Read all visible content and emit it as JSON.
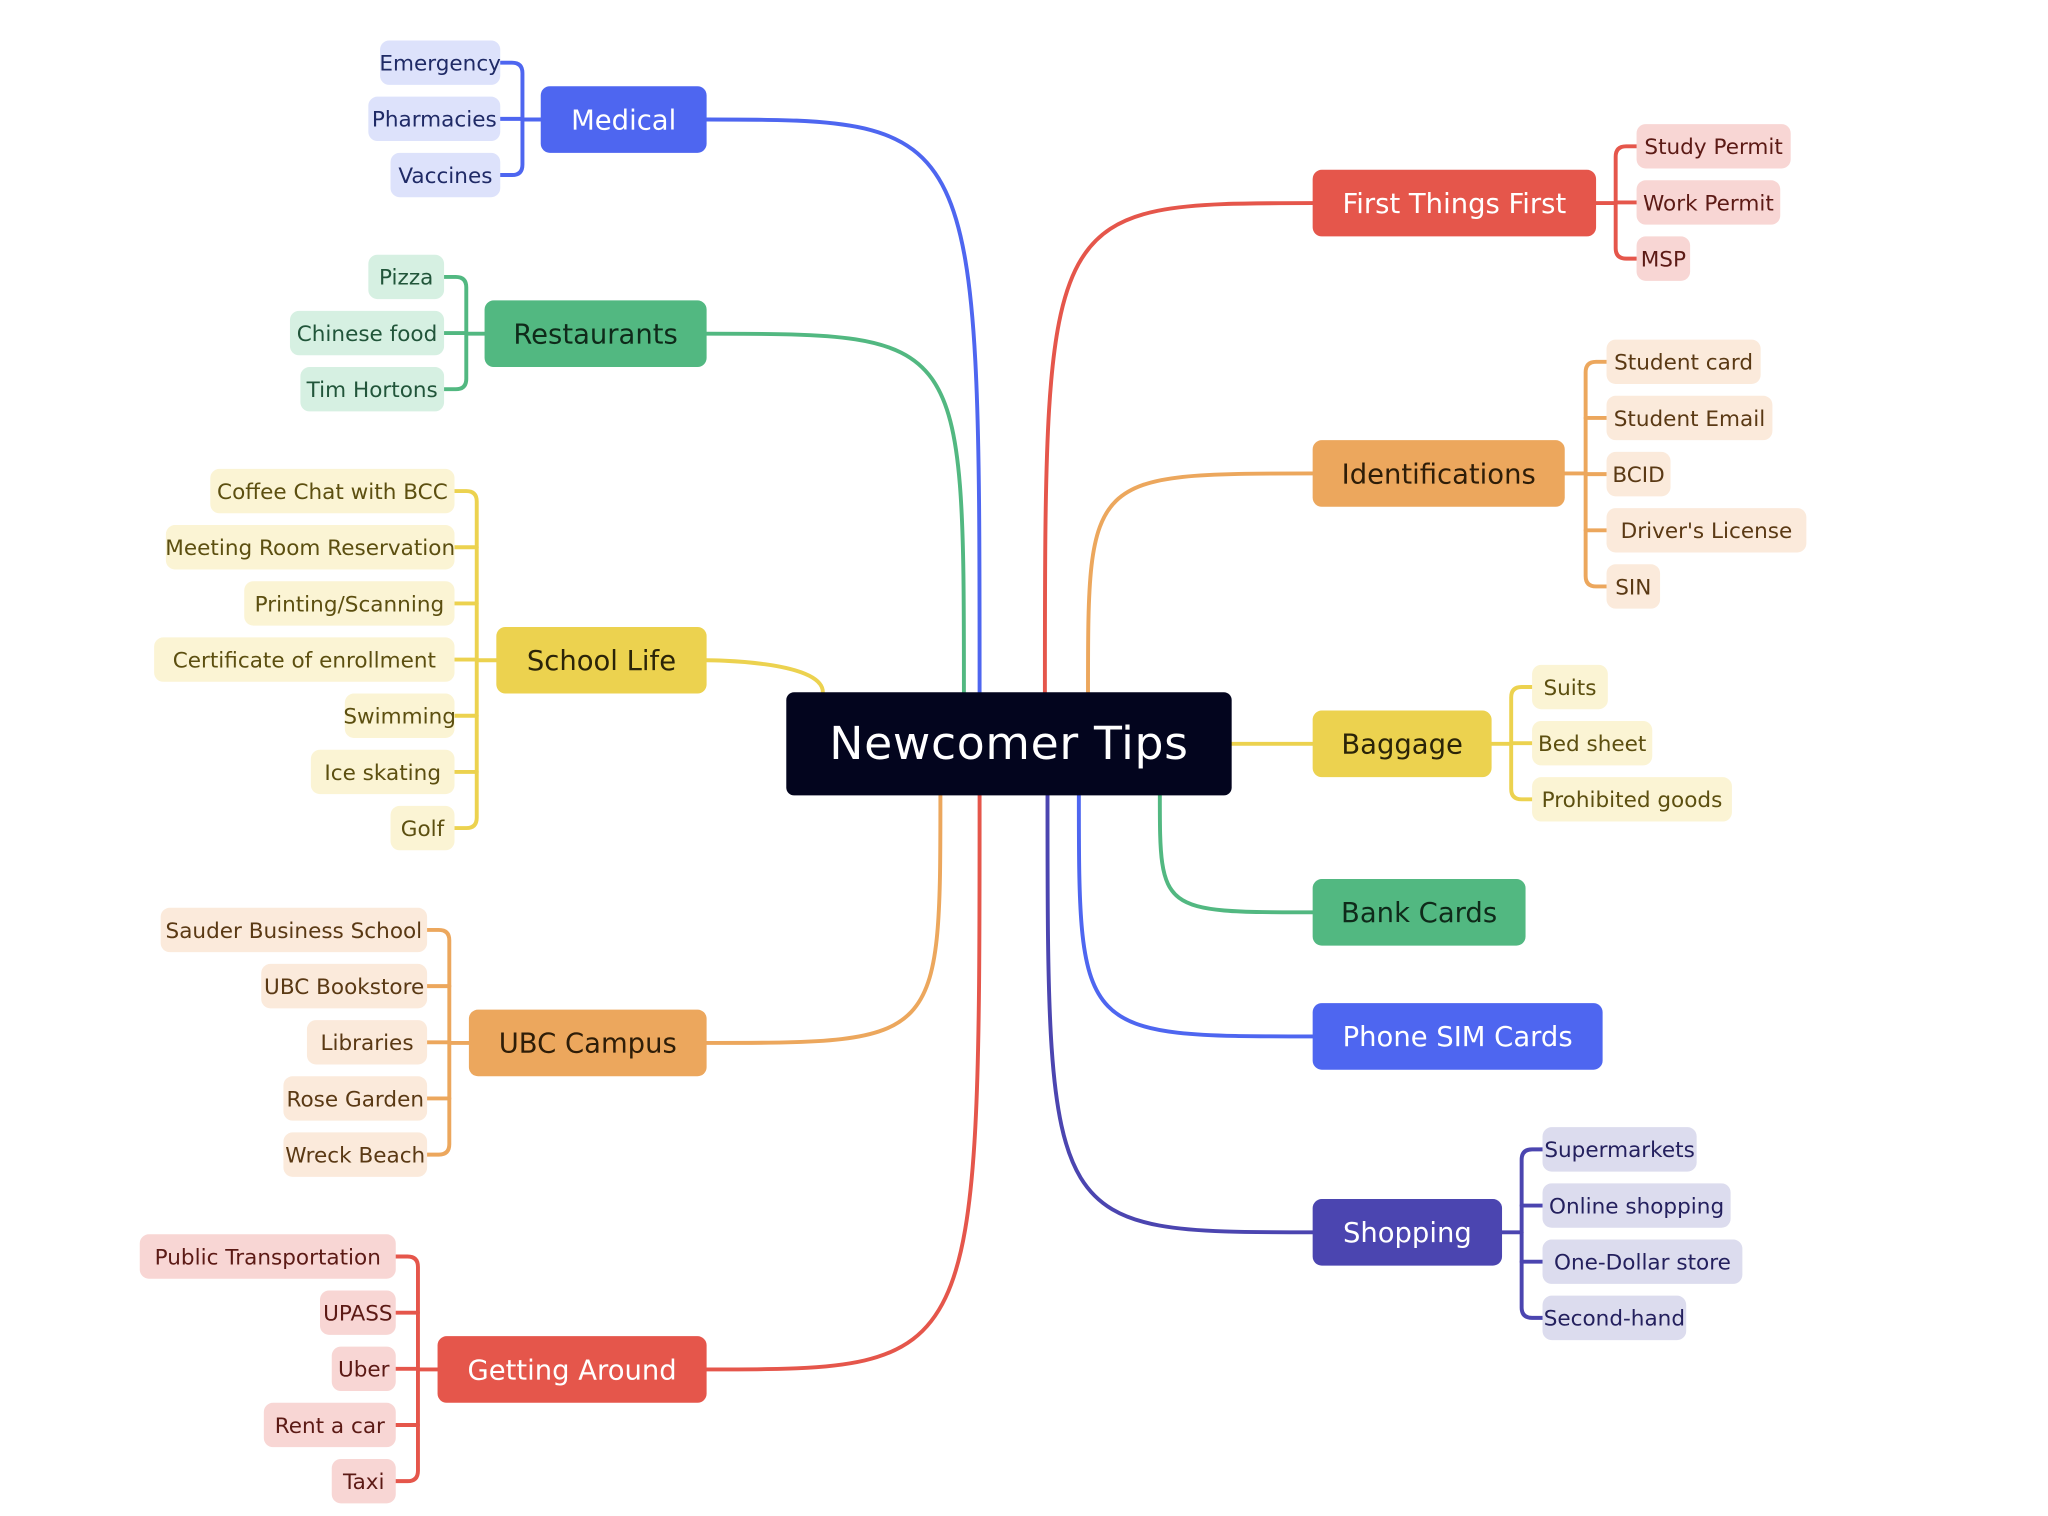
{
  "root": {
    "label": "Newcomer Tips",
    "bg": "#03051e",
    "fg": "#ffffff"
  },
  "branches": [
    {
      "key": "medical",
      "label": "Medical",
      "color": "#4e66f0",
      "fg": "#ffffff",
      "leafBg": "#dde2fb",
      "leafFg": "#1f2a66",
      "leaves": [
        "Emergency",
        "Pharmacies",
        "Vaccines"
      ]
    },
    {
      "key": "restaurants",
      "label": "Restaurants",
      "color": "#52b881",
      "fg": "#0f2a1a",
      "leafBg": "#d6f0e2",
      "leafFg": "#21553a",
      "leaves": [
        "Pizza",
        "Chinese food",
        "Tim Hortons"
      ]
    },
    {
      "key": "school-life",
      "label": "School Life",
      "color": "#ecd24f",
      "fg": "#2b2408",
      "leafBg": "#fbf4d4",
      "leafFg": "#5c4f10",
      "leaves": [
        "Coffee Chat with BCC",
        "Meeting Room Reservation",
        "Printing/Scanning",
        "Certificate of enrollment",
        "Swimming",
        "Ice skating",
        "Golf"
      ]
    },
    {
      "key": "ubc-campus",
      "label": "UBC Campus",
      "color": "#eca75d",
      "fg": "#2e1d08",
      "leafBg": "#fbeadb",
      "leafFg": "#5a3914",
      "leaves": [
        "Sauder Business School",
        "UBC Bookstore",
        "Libraries",
        "Rose Garden",
        "Wreck Beach"
      ]
    },
    {
      "key": "getting-around",
      "label": "Getting Around",
      "color": "#e5564b",
      "fg": "#ffffff",
      "leafBg": "#f8d6d4",
      "leafFg": "#5c1a15",
      "leaves": [
        "Public Transportation",
        "UPASS",
        "Uber",
        "Rent a car",
        "Taxi"
      ]
    },
    {
      "key": "first-things-first",
      "label": "First Things First",
      "color": "#e5564b",
      "fg": "#ffffff",
      "leafBg": "#f8d6d4",
      "leafFg": "#5c1a15",
      "leaves": [
        "Study Permit",
        "Work Permit",
        "MSP"
      ]
    },
    {
      "key": "identifications",
      "label": "Identifications",
      "color": "#eca75d",
      "fg": "#2e1d08",
      "leafBg": "#fbeadb",
      "leafFg": "#5a3914",
      "leaves": [
        "Student card",
        "Student Email",
        "BCID",
        "Driver's License",
        "SIN"
      ]
    },
    {
      "key": "baggage",
      "label": "Baggage",
      "color": "#ecd24f",
      "fg": "#2b2408",
      "leafBg": "#fbf4d4",
      "leafFg": "#5c4f10",
      "leaves": [
        "Suits",
        "Bed sheet",
        "Prohibited goods"
      ]
    },
    {
      "key": "bank-cards",
      "label": "Bank Cards",
      "color": "#52b881",
      "fg": "#0f2a1a",
      "leafBg": "#d6f0e2",
      "leafFg": "#21553a",
      "leaves": []
    },
    {
      "key": "phone-sim-cards",
      "label": "Phone SIM Cards",
      "color": "#4e66f0",
      "fg": "#ffffff",
      "leafBg": "#dde2fb",
      "leafFg": "#1f2a66",
      "leaves": []
    },
    {
      "key": "shopping",
      "label": "Shopping",
      "color": "#4b45b0",
      "fg": "#ffffff",
      "leafBg": "#dcdcee",
      "leafFg": "#24205e",
      "leaves": [
        "Supermarkets",
        "Online shopping",
        "One-Dollar store",
        "Second-hand"
      ]
    }
  ]
}
